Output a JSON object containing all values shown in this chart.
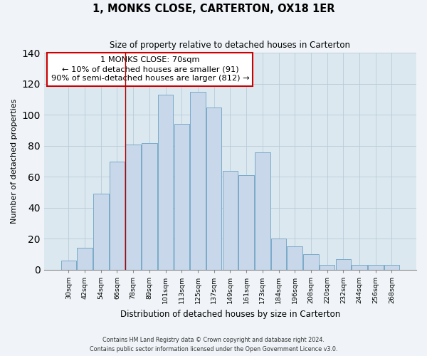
{
  "title": "1, MONKS CLOSE, CARTERTON, OX18 1ER",
  "subtitle": "Size of property relative to detached houses in Carterton",
  "xlabel": "Distribution of detached houses by size in Carterton",
  "ylabel": "Number of detached properties",
  "bar_labels": [
    "30sqm",
    "42sqm",
    "54sqm",
    "66sqm",
    "78sqm",
    "89sqm",
    "101sqm",
    "113sqm",
    "125sqm",
    "137sqm",
    "149sqm",
    "161sqm",
    "173sqm",
    "184sqm",
    "196sqm",
    "208sqm",
    "220sqm",
    "232sqm",
    "244sqm",
    "256sqm",
    "268sqm"
  ],
  "bar_values": [
    6,
    14,
    49,
    70,
    81,
    82,
    113,
    94,
    115,
    105,
    64,
    61,
    76,
    20,
    15,
    10,
    3,
    7,
    3,
    3,
    3
  ],
  "bar_color": "#c8d8ea",
  "bar_edge_color": "#7aaac8",
  "annotation_title": "1 MONKS CLOSE: 70sqm",
  "annotation_line1": "← 10% of detached houses are smaller (91)",
  "annotation_line2": "90% of semi-detached houses are larger (812) →",
  "vline_x_idx": 3.5,
  "ylim": [
    0,
    140
  ],
  "yticks": [
    0,
    20,
    40,
    60,
    80,
    100,
    120,
    140
  ],
  "footnote1": "Contains HM Land Registry data © Crown copyright and database right 2024.",
  "footnote2": "Contains public sector information licensed under the Open Government Licence v3.0.",
  "bg_color": "#f0f4f8",
  "plot_bg_color": "#dce8f0"
}
